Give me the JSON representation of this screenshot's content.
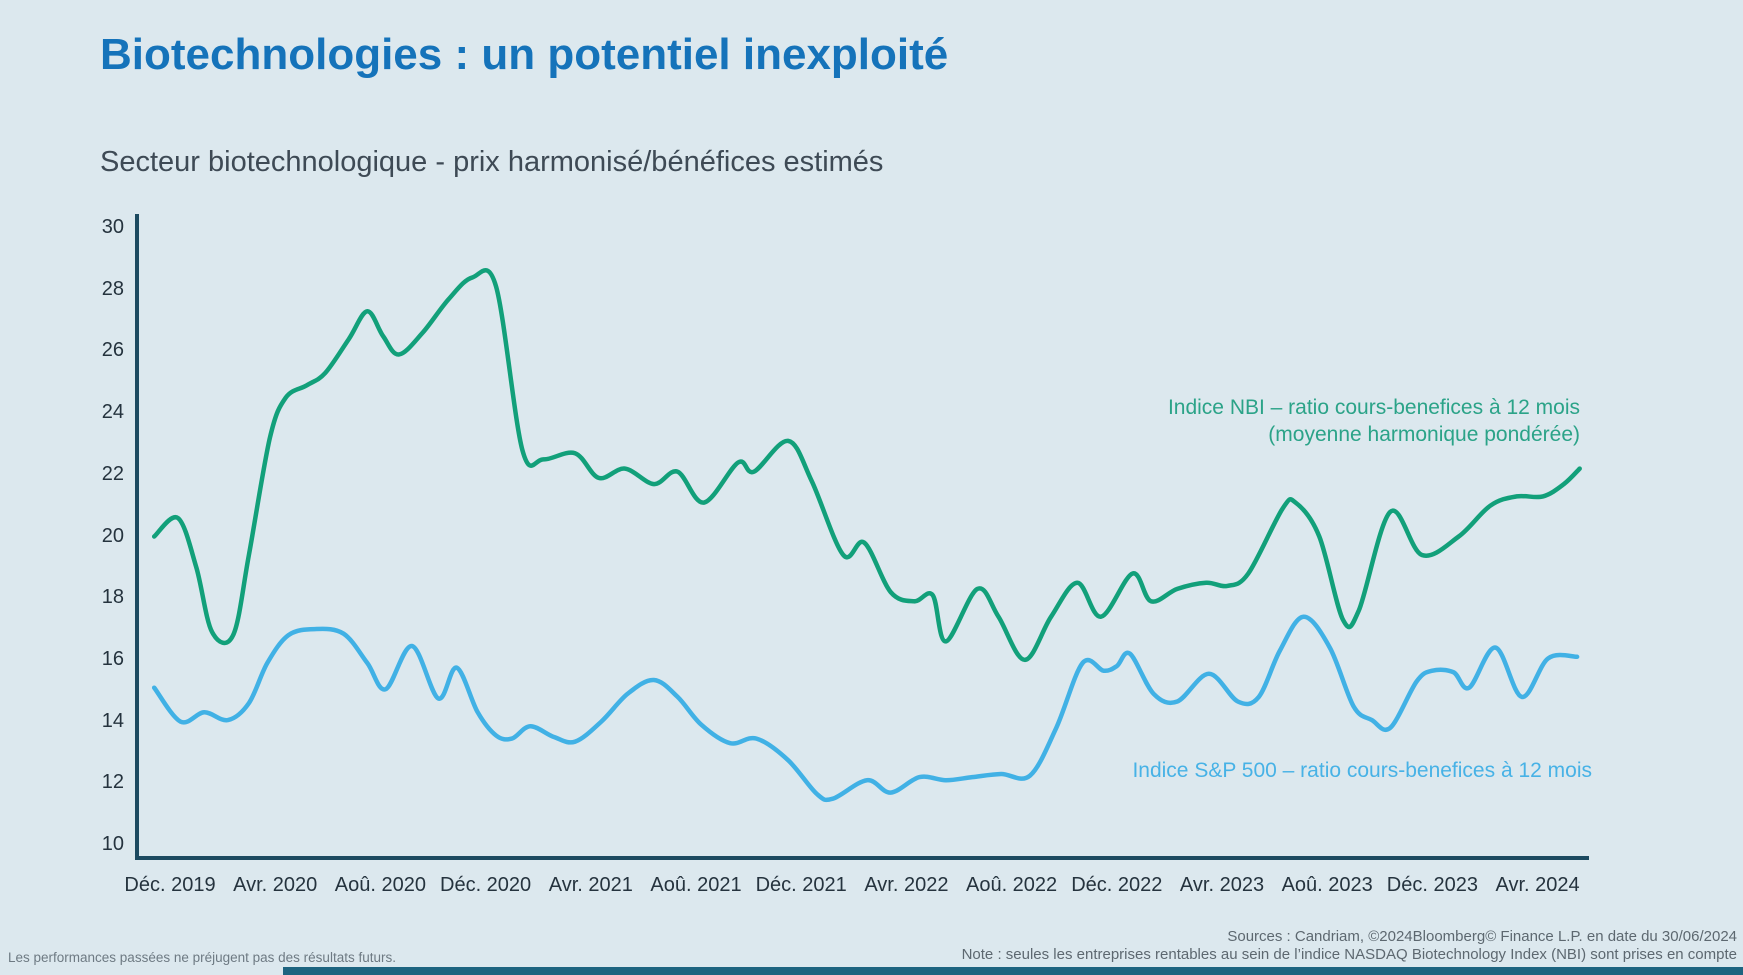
{
  "page": {
    "title": "Biotechnologies : un potentiel inexploité",
    "subtitle": "Secteur biotechnologique - prix harmonisé/bénéfices estimés",
    "footnote_left": "Les performances passées ne préjugent pas des résultats futurs.",
    "source_line": "Sources : Candriam, ©2024Bloomberg© Finance L.P. en date du 30/06/2024",
    "note_line": "Note : seules les entreprises rentables au sein de l’indice NASDAQ Biotechnology Index (NBI) sont prises en compte"
  },
  "colors": {
    "background": "#dce8ee",
    "title": "#1573ba",
    "subtitle": "#3e4a55",
    "axis": "#1c4a60",
    "tick_label": "#25333e",
    "nbi_line": "#12a07a",
    "nbi_legend": "#2ba388",
    "sp500_line": "#41b1e5",
    "sp500_legend": "#47b2e6",
    "footnote": "#6e7a83",
    "source": "#5d6870",
    "bottom_bar": "#1d6480"
  },
  "chart_data": {
    "type": "line",
    "title": "Secteur biotechnologique - prix harmonisé/bénéfices estimés",
    "xlabel": "",
    "ylabel": "",
    "ylim": [
      10,
      30
    ],
    "y_ticks": [
      10,
      12,
      14,
      16,
      18,
      20,
      22,
      24,
      26,
      28,
      30
    ],
    "grid": false,
    "legend_position": "inline-right",
    "x_encoding": "months after Déc. 2019 (0 = Déc. 2019, 54 = Juin 2024, data as of 30/06/2024)",
    "x_tick_month_offsets": [
      0,
      4,
      8,
      12,
      16,
      20,
      24,
      28,
      32,
      36,
      40,
      44,
      48,
      52
    ],
    "x_tick_labels": [
      "Déc. 2019",
      "Avr. 2020",
      "Aoû. 2020",
      "Déc. 2020",
      "Avr. 2021",
      "Aoû. 2021",
      "Déc. 2021",
      "Avr. 2022",
      "Aoû. 2022",
      "Déc. 2022",
      "Avr. 2023",
      "Aoû. 2023",
      "Déc. 2023",
      "Avr. 2024"
    ],
    "series": [
      {
        "name": "Indice NBI – ratio cours-benefices à 12 mois (moyenne harmonique pondérée)",
        "legend_lines": [
          "Indice NBI – ratio cours-benefices à 12 mois",
          "(moyenne harmonique pondérée)"
        ],
        "color_key": "nbi_line",
        "points": [
          [
            -0.6,
            20.0
          ],
          [
            0.3,
            20.6
          ],
          [
            1.0,
            19.0
          ],
          [
            1.6,
            16.9
          ],
          [
            2.4,
            16.8
          ],
          [
            3.0,
            19.4
          ],
          [
            3.8,
            23.2
          ],
          [
            4.4,
            24.5
          ],
          [
            5.2,
            24.9
          ],
          [
            5.9,
            25.3
          ],
          [
            6.8,
            26.4
          ],
          [
            7.5,
            27.3
          ],
          [
            8.1,
            26.5
          ],
          [
            8.7,
            25.9
          ],
          [
            9.6,
            26.6
          ],
          [
            10.6,
            27.7
          ],
          [
            11.5,
            28.4
          ],
          [
            12.4,
            28.1
          ],
          [
            13.4,
            22.8
          ],
          [
            14.2,
            22.5
          ],
          [
            15.4,
            22.7
          ],
          [
            16.3,
            21.9
          ],
          [
            17.3,
            22.2
          ],
          [
            18.4,
            21.7
          ],
          [
            19.3,
            22.1
          ],
          [
            20.3,
            21.1
          ],
          [
            21.6,
            22.4
          ],
          [
            22.2,
            22.1
          ],
          [
            23.5,
            23.1
          ],
          [
            24.4,
            21.8
          ],
          [
            25.6,
            19.4
          ],
          [
            26.4,
            19.8
          ],
          [
            27.4,
            18.2
          ],
          [
            28.3,
            17.9
          ],
          [
            29.0,
            18.1
          ],
          [
            29.5,
            16.6
          ],
          [
            30.7,
            18.3
          ],
          [
            31.5,
            17.4
          ],
          [
            32.5,
            16.0
          ],
          [
            33.5,
            17.4
          ],
          [
            34.5,
            18.5
          ],
          [
            35.4,
            17.4
          ],
          [
            36.6,
            18.8
          ],
          [
            37.3,
            17.9
          ],
          [
            38.3,
            18.3
          ],
          [
            39.4,
            18.5
          ],
          [
            40.2,
            18.4
          ],
          [
            41.0,
            18.8
          ],
          [
            42.3,
            20.9
          ],
          [
            42.8,
            21.1
          ],
          [
            43.7,
            20.0
          ],
          [
            44.6,
            17.3
          ],
          [
            45.2,
            17.6
          ],
          [
            46.4,
            20.8
          ],
          [
            47.6,
            19.4
          ],
          [
            49.0,
            20.0
          ],
          [
            50.2,
            21.0
          ],
          [
            51.2,
            21.3
          ],
          [
            52.2,
            21.3
          ],
          [
            53.0,
            21.7
          ],
          [
            53.6,
            22.2
          ]
        ]
      },
      {
        "name": "Indice S&P 500 – ratio cours-benefices à 12 mois",
        "legend_lines": [
          "Indice S&P 500 – ratio cours-benefices à 12 mois"
        ],
        "color_key": "sp500_line",
        "points": [
          [
            -0.6,
            15.1
          ],
          [
            0.4,
            14.0
          ],
          [
            1.3,
            14.3
          ],
          [
            2.2,
            14.05
          ],
          [
            3.0,
            14.6
          ],
          [
            3.7,
            15.9
          ],
          [
            4.5,
            16.8
          ],
          [
            5.5,
            17.0
          ],
          [
            6.6,
            16.85
          ],
          [
            7.5,
            15.9
          ],
          [
            8.2,
            15.05
          ],
          [
            9.2,
            16.45
          ],
          [
            10.2,
            14.75
          ],
          [
            10.9,
            15.75
          ],
          [
            11.7,
            14.3
          ],
          [
            12.4,
            13.55
          ],
          [
            13.0,
            13.45
          ],
          [
            13.7,
            13.85
          ],
          [
            14.6,
            13.5
          ],
          [
            15.4,
            13.35
          ],
          [
            16.4,
            14.0
          ],
          [
            17.4,
            14.9
          ],
          [
            18.4,
            15.35
          ],
          [
            19.3,
            14.8
          ],
          [
            20.2,
            13.9
          ],
          [
            21.3,
            13.3
          ],
          [
            22.3,
            13.45
          ],
          [
            23.5,
            12.75
          ],
          [
            24.6,
            11.65
          ],
          [
            25.2,
            11.5
          ],
          [
            26.5,
            12.1
          ],
          [
            27.4,
            11.7
          ],
          [
            28.5,
            12.2
          ],
          [
            29.5,
            12.1
          ],
          [
            30.5,
            12.2
          ],
          [
            31.6,
            12.3
          ],
          [
            32.7,
            12.25
          ],
          [
            33.7,
            13.8
          ],
          [
            34.7,
            15.9
          ],
          [
            35.5,
            15.65
          ],
          [
            36.0,
            15.8
          ],
          [
            36.5,
            16.2
          ],
          [
            37.4,
            14.9
          ],
          [
            38.3,
            14.65
          ],
          [
            39.5,
            15.55
          ],
          [
            40.6,
            14.65
          ],
          [
            41.4,
            14.8
          ],
          [
            42.2,
            16.3
          ],
          [
            43.1,
            17.4
          ],
          [
            44.1,
            16.4
          ],
          [
            45.0,
            14.5
          ],
          [
            45.7,
            14.05
          ],
          [
            46.4,
            13.8
          ],
          [
            47.4,
            15.3
          ],
          [
            48.0,
            15.65
          ],
          [
            48.8,
            15.6
          ],
          [
            49.4,
            15.1
          ],
          [
            50.4,
            16.4
          ],
          [
            51.4,
            14.8
          ],
          [
            52.4,
            16.05
          ],
          [
            53.5,
            16.1
          ]
        ]
      }
    ]
  }
}
